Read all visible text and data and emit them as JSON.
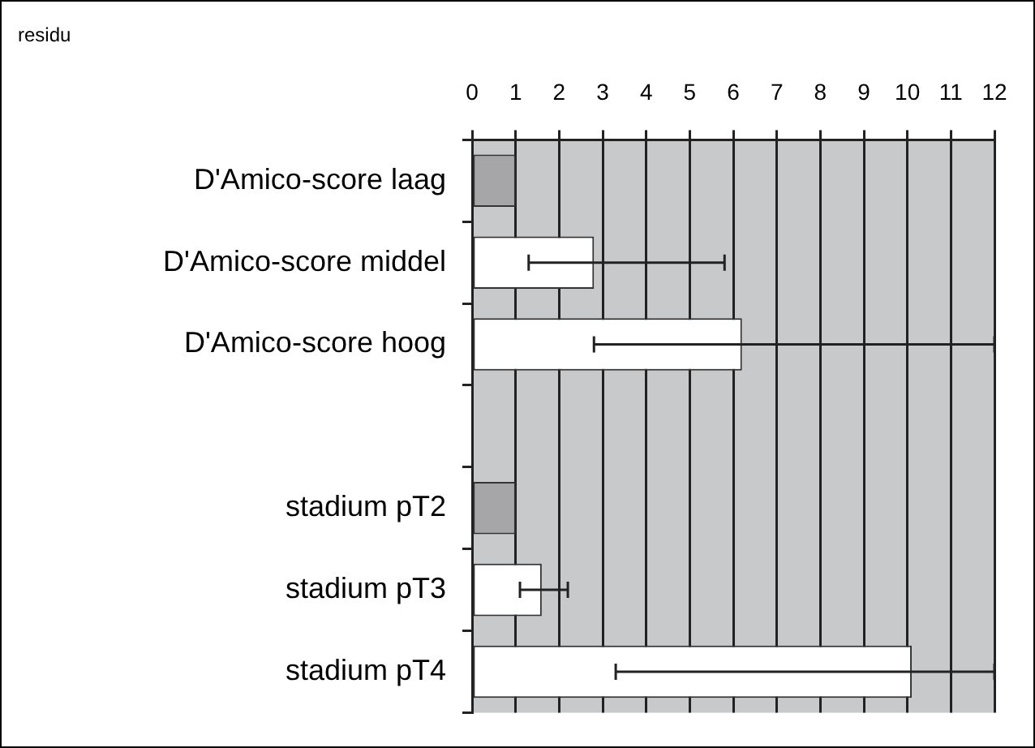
{
  "chart_data": {
    "type": "bar",
    "orientation": "horizontal",
    "title": "residu",
    "categories": [
      "D'Amico-score laag",
      "D'Amico-score middel",
      "D'Amico-score hoog",
      null,
      "stadium pT2",
      "stadium pT3",
      "stadium pT4"
    ],
    "values": [
      1,
      2.8,
      6.2,
      null,
      1,
      1.6,
      10.1
    ],
    "colors": [
      "#a6a6a8",
      "#ffffff",
      "#ffffff",
      null,
      "#a6a6a8",
      "#ffffff",
      "#ffffff"
    ],
    "errors": [
      null,
      [
        1.3,
        5.8
      ],
      [
        2.8,
        12
      ],
      null,
      null,
      [
        1.1,
        2.2
      ],
      [
        3.3,
        12
      ]
    ],
    "xlim": [
      0,
      12
    ],
    "xticks": [
      0,
      1,
      2,
      3,
      4,
      5,
      6,
      7,
      8,
      9,
      10,
      11,
      12
    ],
    "grid": "x",
    "legend": false
  }
}
